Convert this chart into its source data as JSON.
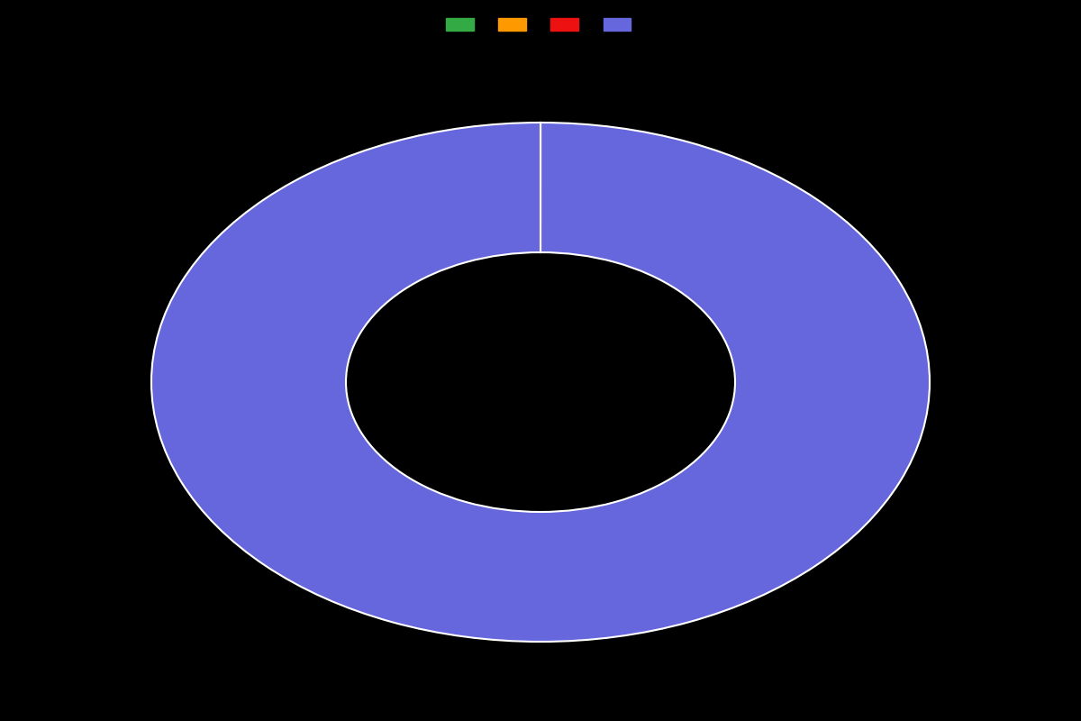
{
  "slices": [
    0.001,
    0.001,
    0.001,
    99.997
  ],
  "colors": [
    "#33aa44",
    "#ff9900",
    "#ee1111",
    "#6666dd"
  ],
  "legend_labels": [
    "",
    "",
    "",
    ""
  ],
  "background_color": "#000000",
  "wedge_edge_color": "#ffffff",
  "wedge_linewidth": 1.5,
  "donut_width": 0.5,
  "figsize": [
    12,
    8
  ],
  "dpi": 100
}
